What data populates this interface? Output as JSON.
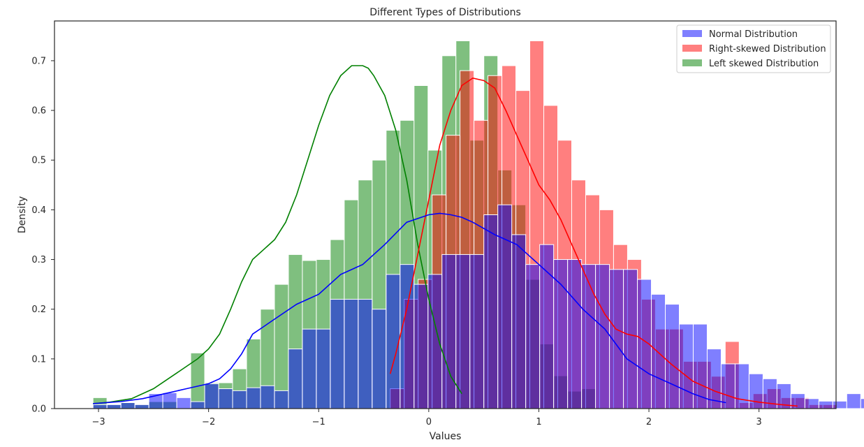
{
  "chart_data": {
    "type": "histogram",
    "title": "Different Types of Distributions",
    "xlabel": "Values",
    "ylabel": "Density",
    "xlim": [
      -3.4,
      3.7
    ],
    "ylim": [
      0,
      0.78
    ],
    "x_ticks": [
      {
        "value": -3,
        "label": "−3"
      },
      {
        "value": -2,
        "label": "−2"
      },
      {
        "value": -1,
        "label": "−1"
      },
      {
        "value": 0,
        "label": "0"
      },
      {
        "value": 1,
        "label": "1"
      },
      {
        "value": 2,
        "label": "2"
      },
      {
        "value": 3,
        "label": "3"
      }
    ],
    "y_ticks": [
      {
        "value": 0.0,
        "label": "0.0"
      },
      {
        "value": 0.1,
        "label": "0.1"
      },
      {
        "value": 0.2,
        "label": "0.2"
      },
      {
        "value": 0.3,
        "label": "0.3"
      },
      {
        "value": 0.4,
        "label": "0.4"
      },
      {
        "value": 0.5,
        "label": "0.5"
      },
      {
        "value": 0.6,
        "label": "0.6"
      },
      {
        "value": 0.7,
        "label": "0.7"
      }
    ],
    "grid": false,
    "legend_position": "top-right",
    "series": [
      {
        "name": "Left skewed Distribution",
        "color": "#008000",
        "bar_opacity": 0.5,
        "bin_start": -3.05,
        "bin_width": 0.1268,
        "densities": [
          0.022,
          0.008,
          0.012,
          0.008,
          0.014,
          0.014,
          0.0,
          0.112,
          0.052,
          0.052,
          0.08,
          0.14,
          0.2,
          0.25,
          0.31,
          0.298,
          0.3,
          0.34,
          0.42,
          0.46,
          0.5,
          0.56,
          0.58,
          0.65,
          0.52,
          0.71,
          0.74,
          0.54,
          0.71,
          0.48,
          0.41,
          0.26,
          0.13,
          0.066,
          0.035,
          0.04
        ],
        "kde_x": [
          -3.05,
          -2.9,
          -2.7,
          -2.5,
          -2.3,
          -2.1,
          -2.0,
          -1.9,
          -1.8,
          -1.7,
          -1.6,
          -1.5,
          -1.4,
          -1.3,
          -1.2,
          -1.1,
          -1.0,
          -0.9,
          -0.8,
          -0.7,
          -0.6,
          -0.55,
          -0.5,
          -0.4,
          -0.3,
          -0.2,
          -0.1,
          0.0,
          0.1,
          0.2,
          0.3
        ],
        "kde_y": [
          0.01,
          0.013,
          0.02,
          0.04,
          0.07,
          0.1,
          0.12,
          0.15,
          0.2,
          0.255,
          0.3,
          0.32,
          0.34,
          0.375,
          0.43,
          0.5,
          0.57,
          0.63,
          0.67,
          0.69,
          0.69,
          0.685,
          0.67,
          0.63,
          0.56,
          0.46,
          0.33,
          0.22,
          0.13,
          0.065,
          0.03
        ]
      },
      {
        "name": "Right-skewed Distribution",
        "color": "#ff0000",
        "bar_opacity": 0.5,
        "bin_start": -0.35,
        "bin_width": 0.1268,
        "densities": [
          0.04,
          0.22,
          0.26,
          0.43,
          0.55,
          0.68,
          0.58,
          0.67,
          0.69,
          0.64,
          0.74,
          0.61,
          0.54,
          0.46,
          0.43,
          0.4,
          0.33,
          0.3,
          0.22,
          0.16,
          0.16,
          0.095,
          0.095,
          0.065,
          0.135,
          0.012,
          0.03,
          0.04,
          0.022,
          0.022,
          0.008,
          0.008
        ],
        "kde_x": [
          -0.35,
          -0.3,
          -0.2,
          -0.1,
          0.0,
          0.1,
          0.2,
          0.3,
          0.4,
          0.5,
          0.6,
          0.7,
          0.8,
          0.9,
          1.0,
          1.1,
          1.2,
          1.3,
          1.4,
          1.5,
          1.6,
          1.7,
          1.8,
          1.9,
          2.0,
          2.2,
          2.4,
          2.6,
          2.8,
          3.0,
          3.2,
          3.35
        ],
        "kde_y": [
          0.07,
          0.11,
          0.2,
          0.31,
          0.42,
          0.53,
          0.6,
          0.65,
          0.665,
          0.66,
          0.645,
          0.6,
          0.55,
          0.5,
          0.45,
          0.42,
          0.38,
          0.33,
          0.28,
          0.23,
          0.19,
          0.16,
          0.15,
          0.145,
          0.13,
          0.09,
          0.055,
          0.035,
          0.02,
          0.013,
          0.008,
          0.005
        ]
      },
      {
        "name": "Normal Distribution",
        "color": "#0000ff",
        "bar_opacity": 0.5,
        "bin_start": -3.05,
        "bin_width": 0.1268,
        "densities": [
          0.008,
          0.008,
          0.012,
          0.008,
          0.03,
          0.032,
          0.022,
          0.014,
          0.05,
          0.04,
          0.036,
          0.042,
          0.046,
          0.036,
          0.12,
          0.16,
          0.16,
          0.22,
          0.22,
          0.22,
          0.2,
          0.27,
          0.29,
          0.25,
          0.27,
          0.31,
          0.31,
          0.31,
          0.39,
          0.41,
          0.35,
          0.29,
          0.33,
          0.3,
          0.3,
          0.29,
          0.29,
          0.28,
          0.28,
          0.26,
          0.23,
          0.21,
          0.17,
          0.17,
          0.12,
          0.09,
          0.09,
          0.07,
          0.06,
          0.05,
          0.03,
          0.02,
          0.015,
          0.015,
          0.03,
          0.02
        ],
        "kde_x": [
          -3.05,
          -2.8,
          -2.6,
          -2.4,
          -2.2,
          -2.0,
          -1.9,
          -1.8,
          -1.7,
          -1.6,
          -1.5,
          -1.4,
          -1.2,
          -1.0,
          -0.8,
          -0.6,
          -0.4,
          -0.2,
          0.0,
          0.1,
          0.2,
          0.3,
          0.4,
          0.6,
          0.8,
          1.0,
          1.2,
          1.4,
          1.6,
          1.8,
          2.0,
          2.2,
          2.4,
          2.55,
          2.7
        ],
        "kde_y": [
          0.01,
          0.014,
          0.02,
          0.03,
          0.04,
          0.05,
          0.06,
          0.08,
          0.11,
          0.15,
          0.165,
          0.18,
          0.21,
          0.23,
          0.27,
          0.29,
          0.33,
          0.375,
          0.39,
          0.393,
          0.39,
          0.385,
          0.375,
          0.35,
          0.33,
          0.29,
          0.25,
          0.2,
          0.16,
          0.1,
          0.07,
          0.05,
          0.03,
          0.018,
          0.012
        ]
      }
    ],
    "legend_items": [
      {
        "label": "Normal Distribution",
        "color": "#0000ff"
      },
      {
        "label": "Right-skewed Distribution",
        "color": "#ff0000"
      },
      {
        "label": "Left skewed Distribution",
        "color": "#008000"
      }
    ]
  }
}
